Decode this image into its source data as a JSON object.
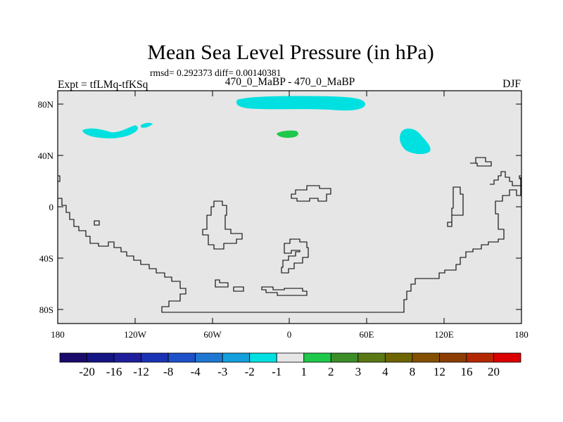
{
  "title": "Mean Sea Level Pressure (in hPa)",
  "stats": "rmsd= 0.292373 diff= 0.00140381",
  "subtitle_left": "Expt = tfLMq-tfKSq",
  "subtitle_center": "470_0_MaBP - 470_0_MaBP",
  "subtitle_right": "DJF",
  "y_ticks": [
    "80N",
    "40N",
    "0",
    "40S",
    "80S"
  ],
  "x_ticks": [
    "180",
    "120W",
    "60W",
    "0",
    "60E",
    "120E",
    "180"
  ],
  "legend": {
    "colors": [
      "#1a0a6b",
      "#141484",
      "#1e1e9c",
      "#1a32b4",
      "#1e50c8",
      "#1e78d2",
      "#14a0dc",
      "#00e0e0",
      "#e6e6e6",
      "#1ec84a",
      "#3c8c28",
      "#5a7814",
      "#6e6400",
      "#825000",
      "#8c3c00",
      "#b42800",
      "#dc0000"
    ],
    "labels": [
      "-20",
      "-16",
      "-12",
      "-8",
      "-4",
      "-3",
      "-2",
      "-1",
      "1",
      "2",
      "3",
      "4",
      "8",
      "12",
      "16",
      "20"
    ]
  },
  "colors": {
    "background": "#e6e6e6",
    "negative_anomaly": "#00e0e0",
    "positive_anomaly": "#1ec84a"
  }
}
